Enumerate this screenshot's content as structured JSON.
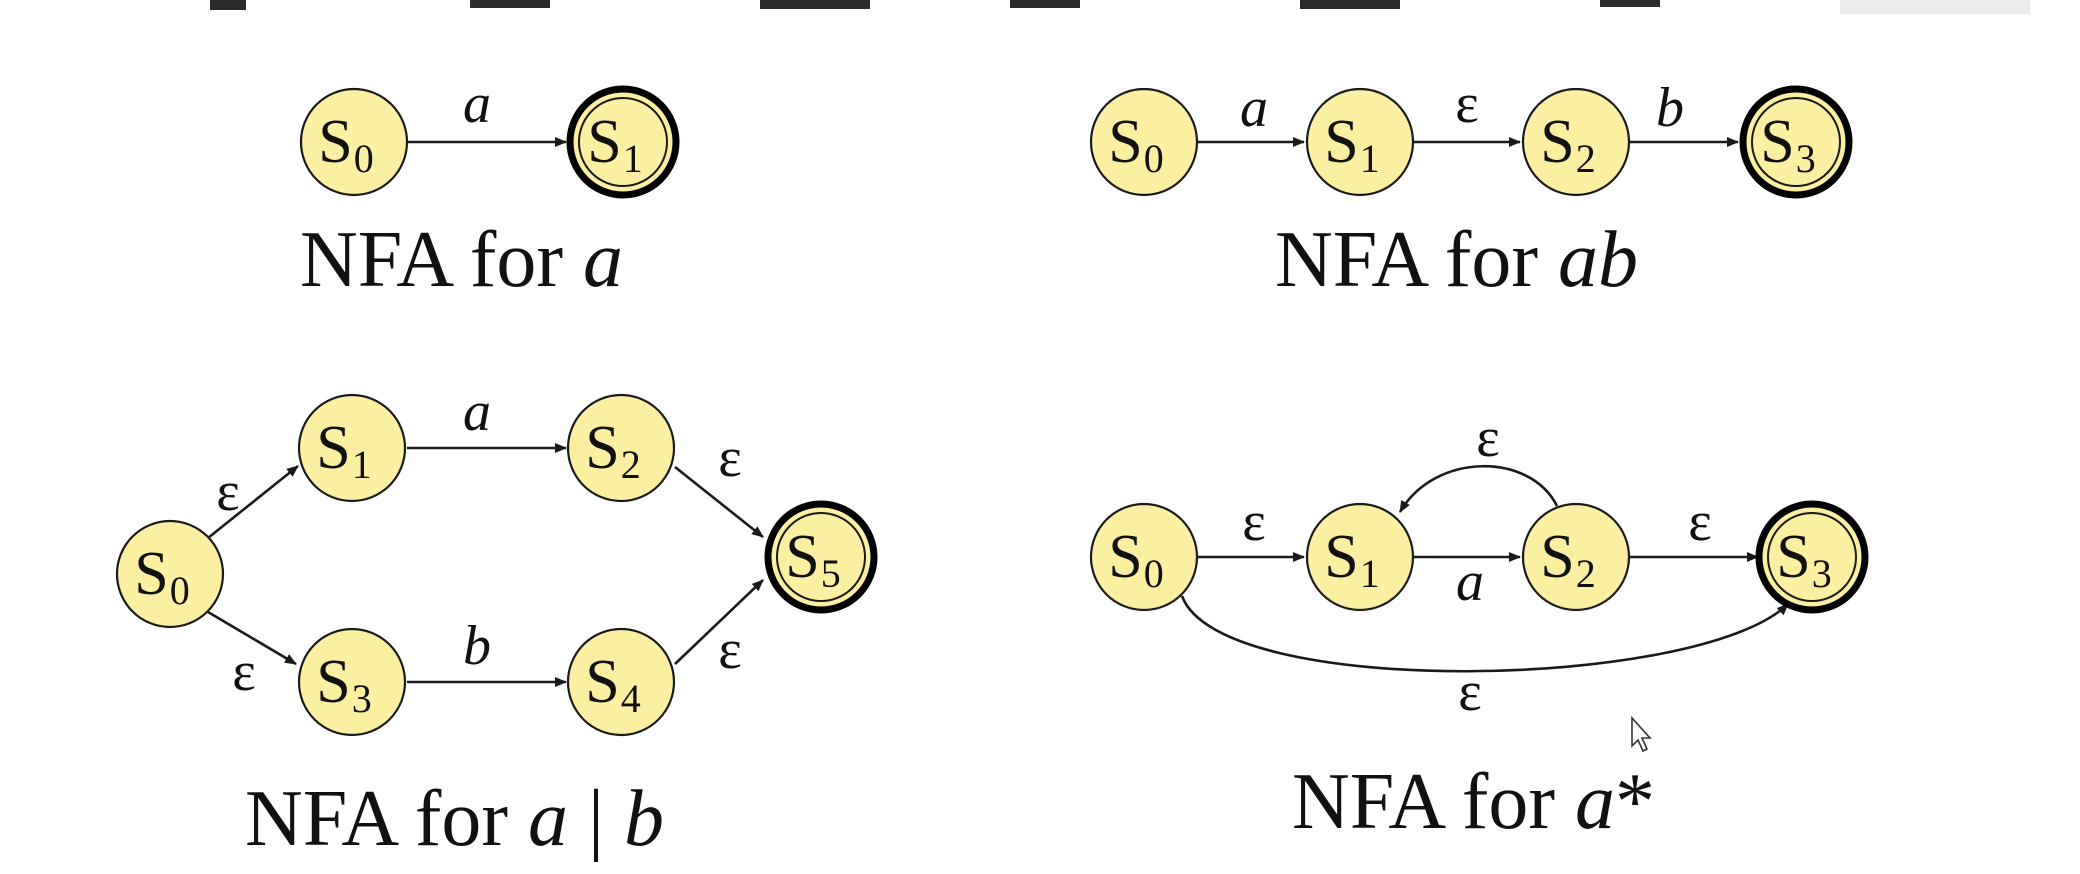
{
  "diagrams": [
    {
      "id": "nfa-a",
      "caption_prefix": "NFA for ",
      "caption_expr": "a",
      "states": [
        {
          "name": "S",
          "sub": "0"
        },
        {
          "name": "S",
          "sub": "1"
        }
      ],
      "edges": [
        {
          "label": "a"
        }
      ]
    },
    {
      "id": "nfa-ab",
      "caption_prefix": "NFA for ",
      "caption_expr": "ab",
      "states": [
        {
          "name": "S",
          "sub": "0"
        },
        {
          "name": "S",
          "sub": "1"
        },
        {
          "name": "S",
          "sub": "2"
        },
        {
          "name": "S",
          "sub": "3"
        }
      ],
      "edges": [
        {
          "label": "a"
        },
        {
          "label": "ε"
        },
        {
          "label": "b"
        }
      ]
    },
    {
      "id": "nfa-a-or-b",
      "caption_prefix": "NFA for ",
      "caption_expr_a": "a",
      "caption_sep": " | ",
      "caption_expr_b": "b",
      "states": [
        {
          "name": "S",
          "sub": "0"
        },
        {
          "name": "S",
          "sub": "1"
        },
        {
          "name": "S",
          "sub": "2"
        },
        {
          "name": "S",
          "sub": "3"
        },
        {
          "name": "S",
          "sub": "4"
        },
        {
          "name": "S",
          "sub": "5"
        }
      ],
      "edges": [
        {
          "label": "ε"
        },
        {
          "label": "a"
        },
        {
          "label": "ε"
        },
        {
          "label": "ε"
        },
        {
          "label": "b"
        },
        {
          "label": "ε"
        }
      ]
    },
    {
      "id": "nfa-a-star",
      "caption_prefix": "NFA for ",
      "caption_expr": "a",
      "caption_suffix": "*",
      "states": [
        {
          "name": "S",
          "sub": "0"
        },
        {
          "name": "S",
          "sub": "1"
        },
        {
          "name": "S",
          "sub": "2"
        },
        {
          "name": "S",
          "sub": "3"
        }
      ],
      "edges": [
        {
          "label": "ε"
        },
        {
          "label": "a"
        },
        {
          "label": "ε"
        },
        {
          "label": "ε"
        },
        {
          "label": "ε"
        }
      ]
    }
  ],
  "colors": {
    "state_fill": "#fbf0a2",
    "stroke": "#1a1a1a"
  }
}
